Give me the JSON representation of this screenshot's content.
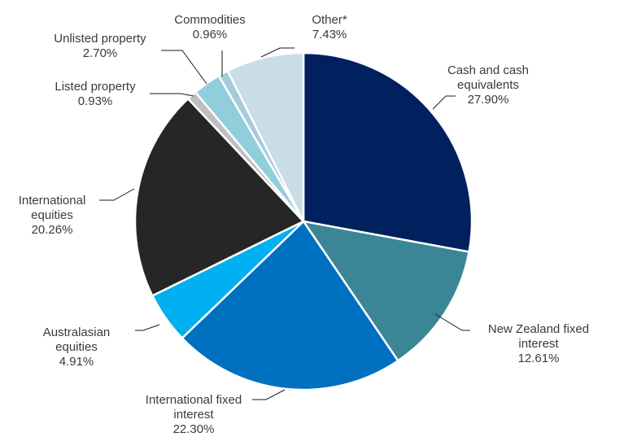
{
  "chart_data": {
    "type": "pie",
    "title": "",
    "start": "12 o'clock",
    "direction": "clockwise",
    "slices": [
      {
        "name": "Cash and cash equivalents",
        "lines": [
          "Cash and cash",
          "equivalents"
        ],
        "value": 27.9,
        "label": "27.90%",
        "color": "#00215e"
      },
      {
        "name": "New Zealand fixed interest",
        "lines": [
          "New Zealand fixed",
          "interest"
        ],
        "value": 12.61,
        "label": "12.61%",
        "color": "#3a8696"
      },
      {
        "name": "International fixed interest",
        "lines": [
          "International fixed",
          "interest"
        ],
        "value": 22.3,
        "label": "22.30%",
        "color": "#0070c0"
      },
      {
        "name": "Australasian equities",
        "lines": [
          "Australasian",
          "equities"
        ],
        "value": 4.91,
        "label": "4.91%",
        "color": "#00b0f0"
      },
      {
        "name": "International equities",
        "lines": [
          "International",
          "equities"
        ],
        "value": 20.26,
        "label": "20.26%",
        "color": "#262626"
      },
      {
        "name": "Listed property",
        "lines": [
          "Listed property"
        ],
        "value": 0.93,
        "label": "0.93%",
        "color": "#bfbfbf"
      },
      {
        "name": "Unlisted property",
        "lines": [
          "Unlisted property"
        ],
        "value": 2.7,
        "label": "2.70%",
        "color": "#92cddc"
      },
      {
        "name": "Commodities",
        "lines": [
          "Commodities"
        ],
        "value": 0.96,
        "label": "0.96%",
        "color": "#a5cbdd"
      },
      {
        "name": "Other*",
        "lines": [
          "Other*"
        ],
        "value": 7.43,
        "label": "7.43%",
        "color": "#c9dde8"
      }
    ]
  }
}
